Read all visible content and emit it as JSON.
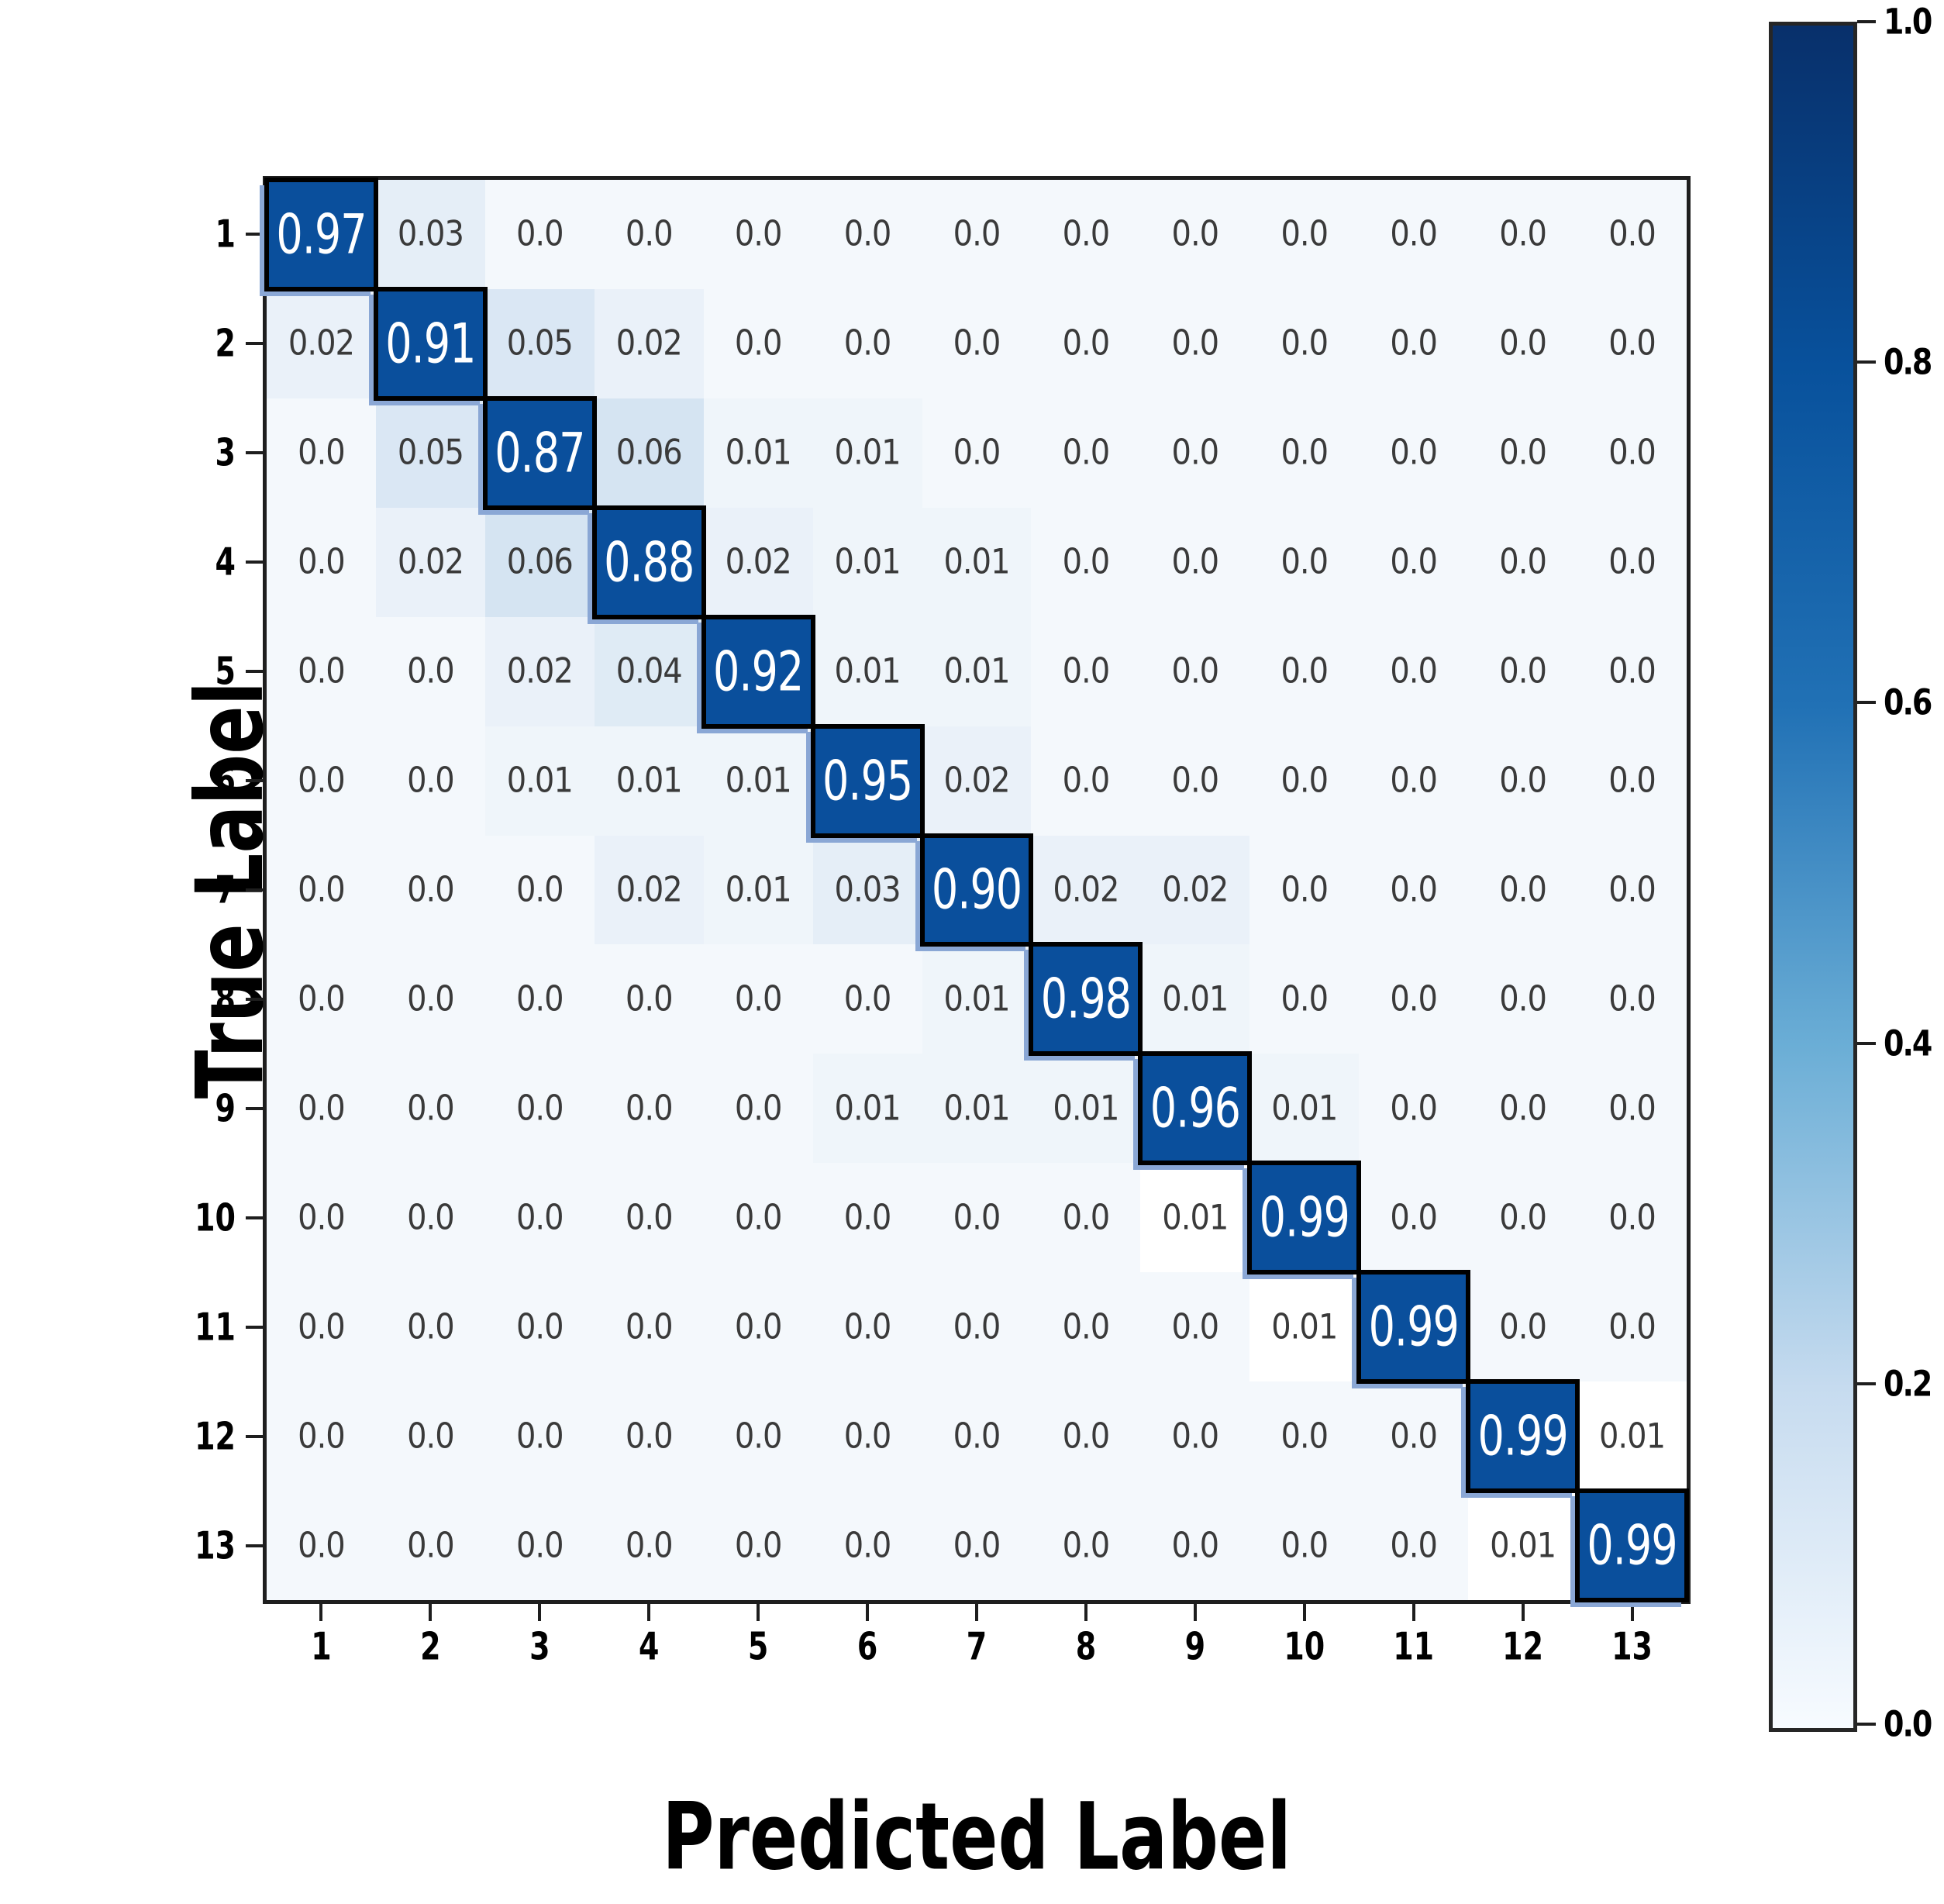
{
  "figure": {
    "background": "#ffffff"
  },
  "chart_data": {
    "type": "heatmap",
    "title": "",
    "xlabel": "Predicted Label",
    "ylabel": "True Label",
    "row_labels": [
      "1",
      "2",
      "3",
      "4",
      "5",
      "6",
      "7",
      "8",
      "9",
      "10",
      "11",
      "12",
      "13"
    ],
    "col_labels": [
      "1",
      "2",
      "3",
      "4",
      "5",
      "6",
      "7",
      "8",
      "9",
      "10",
      "11",
      "12",
      "13"
    ],
    "matrix": [
      [
        "0.97",
        "0.03",
        "0.0",
        "0.0",
        "0.0",
        "0.0",
        "0.0",
        "0.0",
        "0.0",
        "0.0",
        "0.0",
        "0.0",
        "0.0"
      ],
      [
        "0.02",
        "0.91",
        "0.05",
        "0.02",
        "0.0",
        "0.0",
        "0.0",
        "0.0",
        "0.0",
        "0.0",
        "0.0",
        "0.0",
        "0.0"
      ],
      [
        "0.0",
        "0.05",
        "0.87",
        "0.06",
        "0.01",
        "0.01",
        "0.0",
        "0.0",
        "0.0",
        "0.0",
        "0.0",
        "0.0",
        "0.0"
      ],
      [
        "0.0",
        "0.02",
        "0.06",
        "0.88",
        "0.02",
        "0.01",
        "0.01",
        "0.0",
        "0.0",
        "0.0",
        "0.0",
        "0.0",
        "0.0"
      ],
      [
        "0.0",
        "0.0",
        "0.02",
        "0.04",
        "0.92",
        "0.01",
        "0.01",
        "0.0",
        "0.0",
        "0.0",
        "0.0",
        "0.0",
        "0.0"
      ],
      [
        "0.0",
        "0.0",
        "0.01",
        "0.01",
        "0.01",
        "0.95",
        "0.02",
        "0.0",
        "0.0",
        "0.0",
        "0.0",
        "0.0",
        "0.0"
      ],
      [
        "0.0",
        "0.0",
        "0.0",
        "0.02",
        "0.01",
        "0.03",
        "0.90",
        "0.02",
        "0.02",
        "0.0",
        "0.0",
        "0.0",
        "0.0"
      ],
      [
        "0.0",
        "0.0",
        "0.0",
        "0.0",
        "0.0",
        "0.0",
        "0.01",
        "0.98",
        "0.01",
        "0.0",
        "0.0",
        "0.0",
        "0.0"
      ],
      [
        "0.0",
        "0.0",
        "0.0",
        "0.0",
        "0.0",
        "0.01",
        "0.01",
        "0.01",
        "0.96",
        "0.01",
        "0.0",
        "0.0",
        "0.0"
      ],
      [
        "0.0",
        "0.0",
        "0.0",
        "0.0",
        "0.0",
        "0.0",
        "0.0",
        "0.0",
        "0.01",
        "0.99",
        "0.0",
        "0.0",
        "0.0"
      ],
      [
        "0.0",
        "0.0",
        "0.0",
        "0.0",
        "0.0",
        "0.0",
        "0.0",
        "0.0",
        "0.0",
        "0.01",
        "0.99",
        "0.0",
        "0.0"
      ],
      [
        "0.0",
        "0.0",
        "0.0",
        "0.0",
        "0.0",
        "0.0",
        "0.0",
        "0.0",
        "0.0",
        "0.0",
        "0.0",
        "0.99",
        "0.01"
      ],
      [
        "0.0",
        "0.0",
        "0.0",
        "0.0",
        "0.0",
        "0.0",
        "0.0",
        "0.0",
        "0.0",
        "0.0",
        "0.0",
        "0.01",
        "0.99"
      ]
    ],
    "value_range": [
      0.0,
      1.0
    ],
    "grid": false,
    "colorbar": {
      "position": "right",
      "tick_labels": [
        "1.0",
        "0.8",
        "0.6",
        "0.4",
        "0.2",
        "0.0"
      ],
      "gradient_stops": [
        "#08306b",
        "#08519c",
        "#2171b5",
        "#6baed6",
        "#c6dbef",
        "#f7fbff"
      ]
    },
    "colors": {
      "diagonal_fill": "#0a4f9c",
      "diagonal_text": "#ffffff",
      "diagonal_border": "#000000",
      "zero_fill": "#f4f8fc",
      "low_max_fill": "#d5e4f2",
      "white_cell_fill": "#ffffff",
      "offdiag_text": "#3a3a3a",
      "spine": "#1e1e1e"
    },
    "white_cells": [
      [
        10,
        9
      ],
      [
        11,
        10
      ],
      [
        12,
        13
      ],
      [
        13,
        12
      ]
    ]
  }
}
